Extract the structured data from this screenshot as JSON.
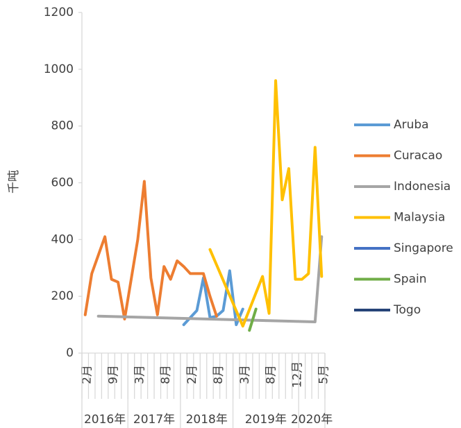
{
  "chart_data": {
    "type": "line",
    "y_label": "千吨",
    "categories": [
      "2月",
      null,
      null,
      null,
      "9月",
      null,
      null,
      null,
      "3月",
      null,
      null,
      null,
      "8月",
      null,
      null,
      null,
      "2月",
      null,
      null,
      null,
      "8月",
      null,
      null,
      null,
      "3月",
      null,
      null,
      null,
      "8月",
      null,
      null,
      null,
      "12月",
      null,
      null,
      null,
      "5月"
    ],
    "x_groups": [
      {
        "label": "2016年",
        "count": 7
      },
      {
        "label": "2017年",
        "count": 8
      },
      {
        "label": "2018年",
        "count": 8
      },
      {
        "label": "2019年",
        "count": 10
      },
      {
        "label": "2020年",
        "count": 4
      }
    ],
    "ylim": [
      0,
      1200
    ],
    "yticks": [
      0,
      200,
      400,
      600,
      800,
      1000,
      1200
    ],
    "series": [
      {
        "name": "Aruba",
        "color": "#5b9bd5",
        "values": [
          null,
          null,
          null,
          null,
          null,
          null,
          null,
          null,
          null,
          null,
          null,
          null,
          null,
          null,
          null,
          100,
          125,
          150,
          265,
          125,
          130,
          150,
          290,
          100,
          155,
          null,
          null,
          null,
          null,
          null,
          null,
          null,
          null,
          null,
          null,
          null,
          null
        ]
      },
      {
        "name": "Curacao",
        "color": "#ed7d31",
        "values": [
          135,
          280,
          345,
          410,
          260,
          250,
          120,
          260,
          400,
          605,
          265,
          135,
          305,
          260,
          325,
          305,
          280,
          280,
          280,
          200,
          130,
          null,
          null,
          null,
          null,
          null,
          null,
          null,
          null,
          null,
          null,
          null,
          null,
          null,
          null,
          null,
          null
        ]
      },
      {
        "name": "Indonesia",
        "color": "#a5a5a5",
        "values": [
          null,
          null,
          130,
          129.4,
          128.8,
          128.2,
          127.6,
          127,
          126.4,
          125.8,
          125.2,
          124.5,
          123.9,
          123.3,
          122.7,
          122.1,
          121.5,
          120.9,
          120.3,
          119.7,
          119.1,
          118.5,
          117.9,
          117.3,
          116.7,
          116.1,
          115.5,
          114.8,
          114.2,
          113.6,
          113,
          112.4,
          111.8,
          111.2,
          110.6,
          110,
          410
        ]
      },
      {
        "name": "Malaysia",
        "color": "#ffc000",
        "values": [
          null,
          null,
          null,
          null,
          null,
          null,
          null,
          null,
          null,
          null,
          null,
          null,
          null,
          null,
          null,
          null,
          null,
          null,
          null,
          365,
          311,
          257,
          203,
          149,
          95,
          153,
          212,
          270,
          140,
          960,
          540,
          650,
          260,
          260,
          280,
          725,
          270
        ]
      },
      {
        "name": "Singapore",
        "color": "#4472c4",
        "values": [
          null,
          null,
          null,
          null,
          null,
          null,
          null,
          null,
          null,
          null,
          null,
          null,
          null,
          null,
          null,
          null,
          null,
          null,
          null,
          null,
          null,
          null,
          null,
          null,
          null,
          null,
          null,
          null,
          null,
          null,
          null,
          null,
          null,
          null,
          null,
          null,
          null
        ]
      },
      {
        "name": "Spain",
        "color": "#70ad47",
        "values": [
          null,
          null,
          null,
          null,
          null,
          null,
          null,
          null,
          null,
          null,
          null,
          null,
          null,
          null,
          null,
          null,
          null,
          null,
          null,
          null,
          null,
          null,
          null,
          null,
          null,
          80,
          155,
          null,
          null,
          null,
          null,
          null,
          null,
          null,
          null,
          null,
          null
        ]
      },
      {
        "name": "Togo",
        "color": "#264478",
        "values": [
          null,
          null,
          null,
          null,
          null,
          null,
          null,
          null,
          null,
          null,
          null,
          null,
          null,
          null,
          null,
          null,
          null,
          null,
          null,
          null,
          null,
          null,
          null,
          null,
          null,
          null,
          null,
          null,
          null,
          null,
          null,
          null,
          null,
          null,
          null,
          null,
          null
        ]
      }
    ]
  }
}
